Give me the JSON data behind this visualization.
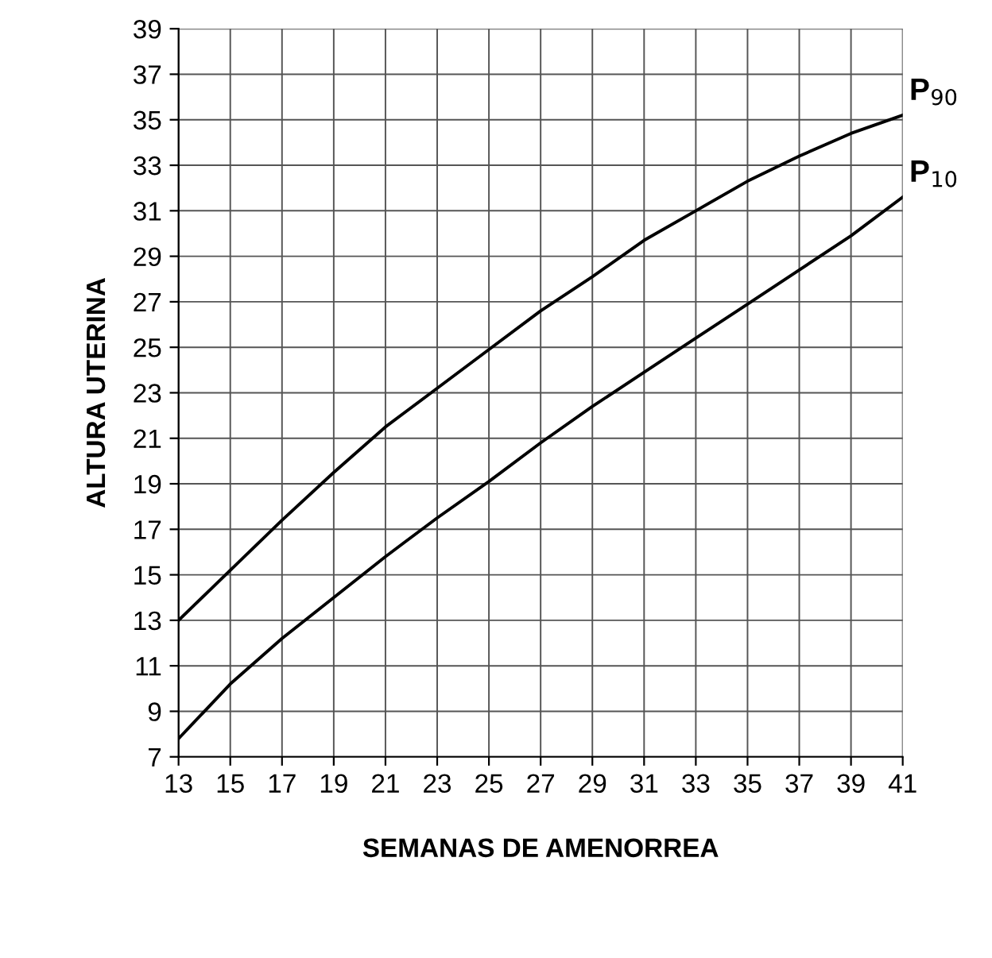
{
  "chart_data": {
    "type": "line",
    "xlabel": "SEMANAS DE AMENORREA",
    "ylabel": "ALTURA UTERINA",
    "x": [
      13,
      15,
      17,
      19,
      21,
      23,
      25,
      27,
      29,
      31,
      33,
      35,
      37,
      39,
      41
    ],
    "series": [
      {
        "name": "P$_{90}$",
        "color": "#000000",
        "values": [
          13.0,
          15.2,
          17.4,
          19.5,
          21.5,
          23.2,
          24.9,
          26.6,
          28.1,
          29.7,
          31.0,
          32.3,
          33.4,
          34.4,
          35.2
        ]
      },
      {
        "name": "P$_{10}$",
        "color": "#000000",
        "values": [
          7.8,
          10.2,
          12.2,
          14.0,
          15.8,
          17.5,
          19.1,
          20.8,
          22.4,
          23.9,
          25.4,
          26.9,
          28.4,
          29.9,
          31.6
        ]
      }
    ],
    "xlim": [
      13,
      41
    ],
    "xticks": [
      13,
      15,
      17,
      19,
      21,
      23,
      25,
      27,
      29,
      31,
      33,
      35,
      37,
      39,
      41
    ],
    "ylim": [
      7,
      39
    ],
    "yticks": [
      7,
      9,
      11,
      13,
      15,
      17,
      19,
      21,
      23,
      25,
      27,
      29,
      31,
      33,
      35,
      37,
      39
    ],
    "grid": true,
    "legend": false,
    "marker": "none",
    "line_style": "solid"
  }
}
